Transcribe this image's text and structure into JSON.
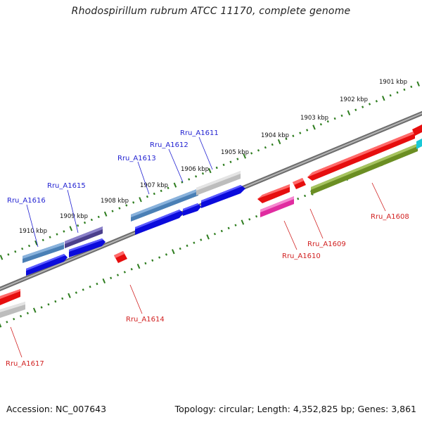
{
  "title": "Rhodospirillum rubrum ATCC 11170, complete genome",
  "footer": {
    "accession": "Accession: NC_007643",
    "topology": "Topology: circular; Length: 4,352,825 bp; Genes: 3,861"
  },
  "ruler_labels": [
    "1901 kbp",
    "1902 kbp",
    "1903 kbp",
    "1904 kbp",
    "1905 kbp",
    "1906 kbp",
    "1907 kbp",
    "1908 kbp",
    "1909 kbp",
    "1910 kbp"
  ],
  "genes_forward": [
    {
      "name": "Rru_A1616",
      "color": "#1f1fd1"
    },
    {
      "name": "Rru_A1615",
      "color": "#1f1fd1"
    },
    {
      "name": "Rru_A1613",
      "color": "#1f1fd1"
    },
    {
      "name": "Rru_A1612",
      "color": "#1f1fd1"
    },
    {
      "name": "Rru_A1611",
      "color": "#1f1fd1"
    }
  ],
  "genes_reverse": [
    {
      "name": "Rru_A1617",
      "color": "#d11f1f"
    },
    {
      "name": "Rru_A1614",
      "color": "#d11f1f"
    },
    {
      "name": "Rru_A1610",
      "color": "#d11f1f"
    },
    {
      "name": "Rru_A1609",
      "color": "#d11f1f"
    },
    {
      "name": "Rru_A1608",
      "color": "#d11f1f"
    }
  ],
  "colors": {
    "backbone": "#808080",
    "ruler": "#2e7d1f",
    "forward_arrow": "#0b0bdc",
    "reverse_arrow": "#e60e0e",
    "steelblue_feature": "#4a7fb5",
    "purple_feature": "#4b3f8c",
    "magenta_feature": "#e02ca0",
    "olive_feature": "#6b8e23",
    "gray_feature": "#bdbdbd",
    "cyan_feature": "#19c8d6"
  }
}
